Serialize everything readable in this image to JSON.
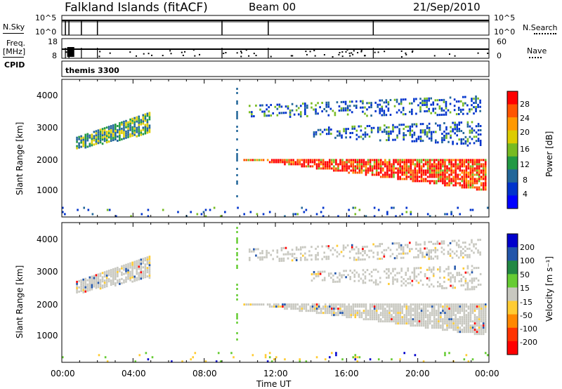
{
  "header": {
    "title": "Falkland Islands (fitACF)",
    "beam": "Beam 00",
    "date": "21/Sep/2010"
  },
  "left_panel_labels": {
    "nsky": "N.Sky",
    "freq": "Freq.",
    "mhz": "[MHz]",
    "cpid": "CPID"
  },
  "right_panel_labels": {
    "nsearch": "N.Search",
    "nave": "Nave"
  },
  "cpid_name": "themis 3300",
  "chart_data": [
    {
      "type": "line",
      "name": "noise-sky-search",
      "left_ticks": [
        "10^5",
        "10^0"
      ],
      "right_ticks": [
        "10^5",
        "10^0"
      ],
      "spikes_hours": [
        0.2,
        0.4,
        1.1,
        2.0,
        9.0,
        11.6,
        17.5
      ]
    },
    {
      "type": "line",
      "name": "frequency-nave",
      "left_ticks": [
        "18",
        "8"
      ],
      "right_ticks": [
        "60",
        "0"
      ],
      "spikes_hours": [
        0.2,
        0.4,
        1.1,
        2.0,
        9.0,
        11.6,
        17.5
      ]
    },
    {
      "type": "heatmap",
      "name": "power",
      "ylabel": "Slant Range [km]",
      "yticks": [
        "4000",
        "3000",
        "2000",
        "1000"
      ],
      "ylim": [
        180,
        4500
      ],
      "xlim": [
        0,
        24
      ],
      "colorbar": {
        "label": "Power [dB]",
        "ticks": [
          "28",
          "24",
          "20",
          "16",
          "12",
          "8",
          "4"
        ],
        "colors": [
          "#ff0000",
          "#ff5500",
          "#ff9900",
          "#ddcc00",
          "#77bb22",
          "#229944",
          "#226699",
          "#0033cc",
          "#0000ff"
        ]
      },
      "regions": [
        {
          "t": [
            0.8,
            5.0
          ],
          "r_lo": [
            2300,
            2800
          ],
          "r_hi": [
            2700,
            3500
          ],
          "level": "mid"
        },
        {
          "t": [
            10.2,
            23.8
          ],
          "r_lo": [
            2000,
            1000
          ],
          "r_hi": [
            2000,
            2000
          ],
          "level": "high"
        },
        {
          "t": [
            10.5,
            23.5
          ],
          "r_lo": [
            3300,
            3400
          ],
          "r_hi": [
            3700,
            4000
          ],
          "level": "low"
        },
        {
          "t": [
            14.0,
            23.5
          ],
          "r_lo": [
            2700,
            2400
          ],
          "r_hi": [
            3000,
            3200
          ],
          "level": "low"
        },
        {
          "t": [
            0.0,
            24.0
          ],
          "r_lo": [
            180,
            180
          ],
          "r_hi": [
            500,
            500
          ],
          "level": "sparse"
        }
      ]
    },
    {
      "type": "heatmap",
      "name": "velocity",
      "ylabel": "Slant Range [km]",
      "yticks": [
        "4000",
        "3000",
        "2000",
        "1000"
      ],
      "ylim": [
        180,
        4500
      ],
      "xlim": [
        0,
        24
      ],
      "xticks": [
        "00:00",
        "04:00",
        "08:00",
        "12:00",
        "16:00",
        "20:00",
        "00:00"
      ],
      "xlabel": "Time UT",
      "colorbar": {
        "label": "Velocity [m s⁻¹]",
        "ticks": [
          "200",
          "100",
          "50",
          "15",
          "-15",
          "-50",
          "-100",
          "-200"
        ],
        "colors": [
          "#0000cc",
          "#2255aa",
          "#228844",
          "#66cc33",
          "#c8c8c0",
          "#ffcc33",
          "#ff8800",
          "#ff3300",
          "#ff0000"
        ]
      }
    }
  ]
}
